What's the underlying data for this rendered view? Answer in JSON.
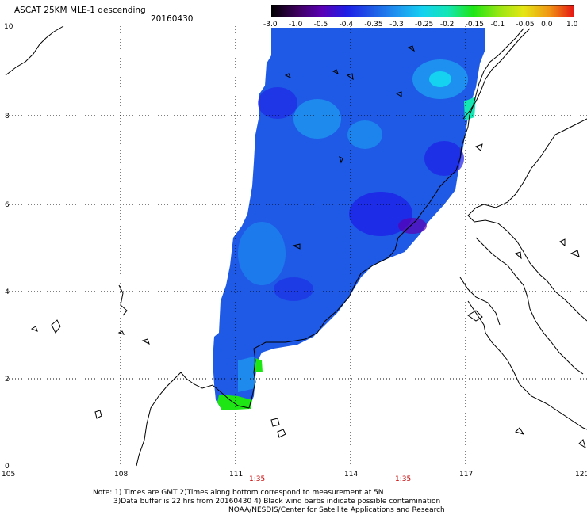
{
  "title": "ASCAT 25KM MLE-1 descending",
  "date": "20160430",
  "colorbar": {
    "labels": [
      "-3.0",
      "-1.0",
      "-0.5",
      "-0.4",
      "-0.35",
      "-0.3",
      "-0.25",
      "-0.2",
      "-0.15",
      "-0.1",
      "-0.05",
      "0.0",
      "1.0"
    ],
    "colors": [
      "#000000",
      "#3c005a",
      "#5a00b4",
      "#1e1ee6",
      "#1e5ae6",
      "#1e96f0",
      "#14d2f0",
      "#14e6b4",
      "#1ee614",
      "#96e614",
      "#e6e614",
      "#f09614",
      "#e61414"
    ]
  },
  "axes": {
    "x_ticks": [
      "105",
      "108",
      "111",
      "114",
      "117",
      "120"
    ],
    "y_ticks": [
      "0",
      "2",
      "4",
      "6",
      "8",
      "10"
    ]
  },
  "times": [
    "1:35",
    "1:35"
  ],
  "notes": [
    "Note: 1) Times are GMT 2)Times along bottom correspond to measurement at 5N",
    "3)Data buffer is 22 hrs from 20160430 4) Black wind barbs indicate possible contamination",
    "NOAA/NESDIS/Center for Satellite Applications and Research"
  ],
  "colors": {
    "swath_main": "#1e5ae6",
    "swath_light": "#1e96f0",
    "swath_dark": "#1e1ee6",
    "grid": "#000000",
    "time_label": "#cc0000"
  }
}
